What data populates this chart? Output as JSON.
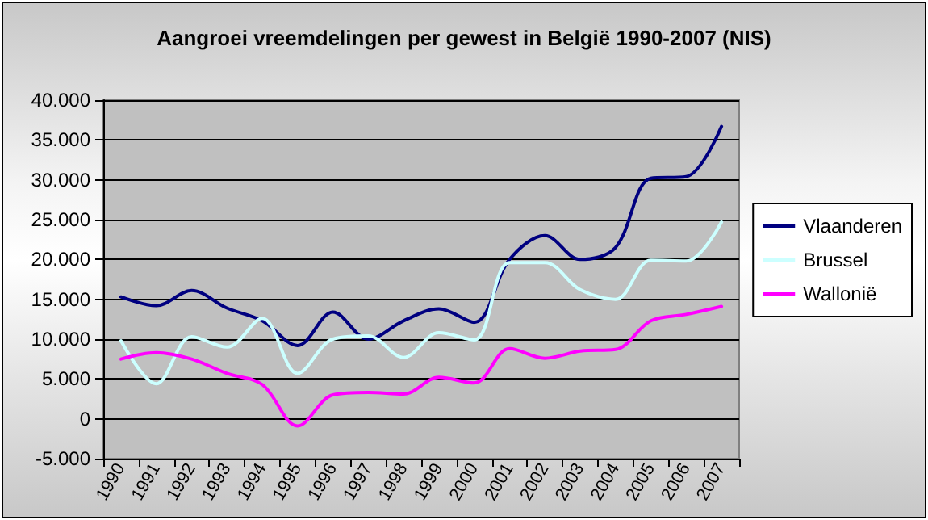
{
  "chart_data": {
    "type": "line",
    "title": "Aangroei vreemdelingen per gewest in België 1990-2007 (NIS)",
    "categories": [
      "1990",
      "1991",
      "1992",
      "1993",
      "1994",
      "1995",
      "1996",
      "1997",
      "1998",
      "1999",
      "2000",
      "2001",
      "2002",
      "2003",
      "2004",
      "2005",
      "2006",
      "2007"
    ],
    "series": [
      {
        "name": "Vlaanderen",
        "color": "#000080",
        "values": [
          15300,
          14200,
          16100,
          13900,
          12300,
          9200,
          13400,
          10000,
          12300,
          13800,
          12100,
          20000,
          23000,
          20000,
          21500,
          30200,
          30400,
          36700
        ]
      },
      {
        "name": "Brussel",
        "color": "#ccffff",
        "values": [
          9800,
          4400,
          10300,
          9000,
          12600,
          5700,
          10000,
          10400,
          7700,
          10800,
          9900,
          19600,
          19600,
          16200,
          15000,
          19900,
          19800,
          24700
        ]
      },
      {
        "name": "Wallonië",
        "color": "#ff00ff",
        "values": [
          7500,
          8300,
          7500,
          5700,
          4300,
          -900,
          3000,
          3300,
          3100,
          5200,
          4500,
          8800,
          7600,
          8500,
          8700,
          12300,
          13100,
          14100
        ]
      }
    ],
    "ylim": [
      -5000,
      40000
    ],
    "yticks": [
      {
        "value": -5000,
        "label": "-5.000"
      },
      {
        "value": 0,
        "label": "0"
      },
      {
        "value": 5000,
        "label": "5.000"
      },
      {
        "value": 10000,
        "label": "10.000"
      },
      {
        "value": 15000,
        "label": "15.000"
      },
      {
        "value": 20000,
        "label": "20.000"
      },
      {
        "value": 25000,
        "label": "25.000"
      },
      {
        "value": 30000,
        "label": "30.000"
      },
      {
        "value": 35000,
        "label": "35.000"
      },
      {
        "value": 40000,
        "label": "40.000"
      }
    ],
    "grid": "y",
    "legend": "right",
    "marker": "none",
    "line_style": "solid"
  }
}
